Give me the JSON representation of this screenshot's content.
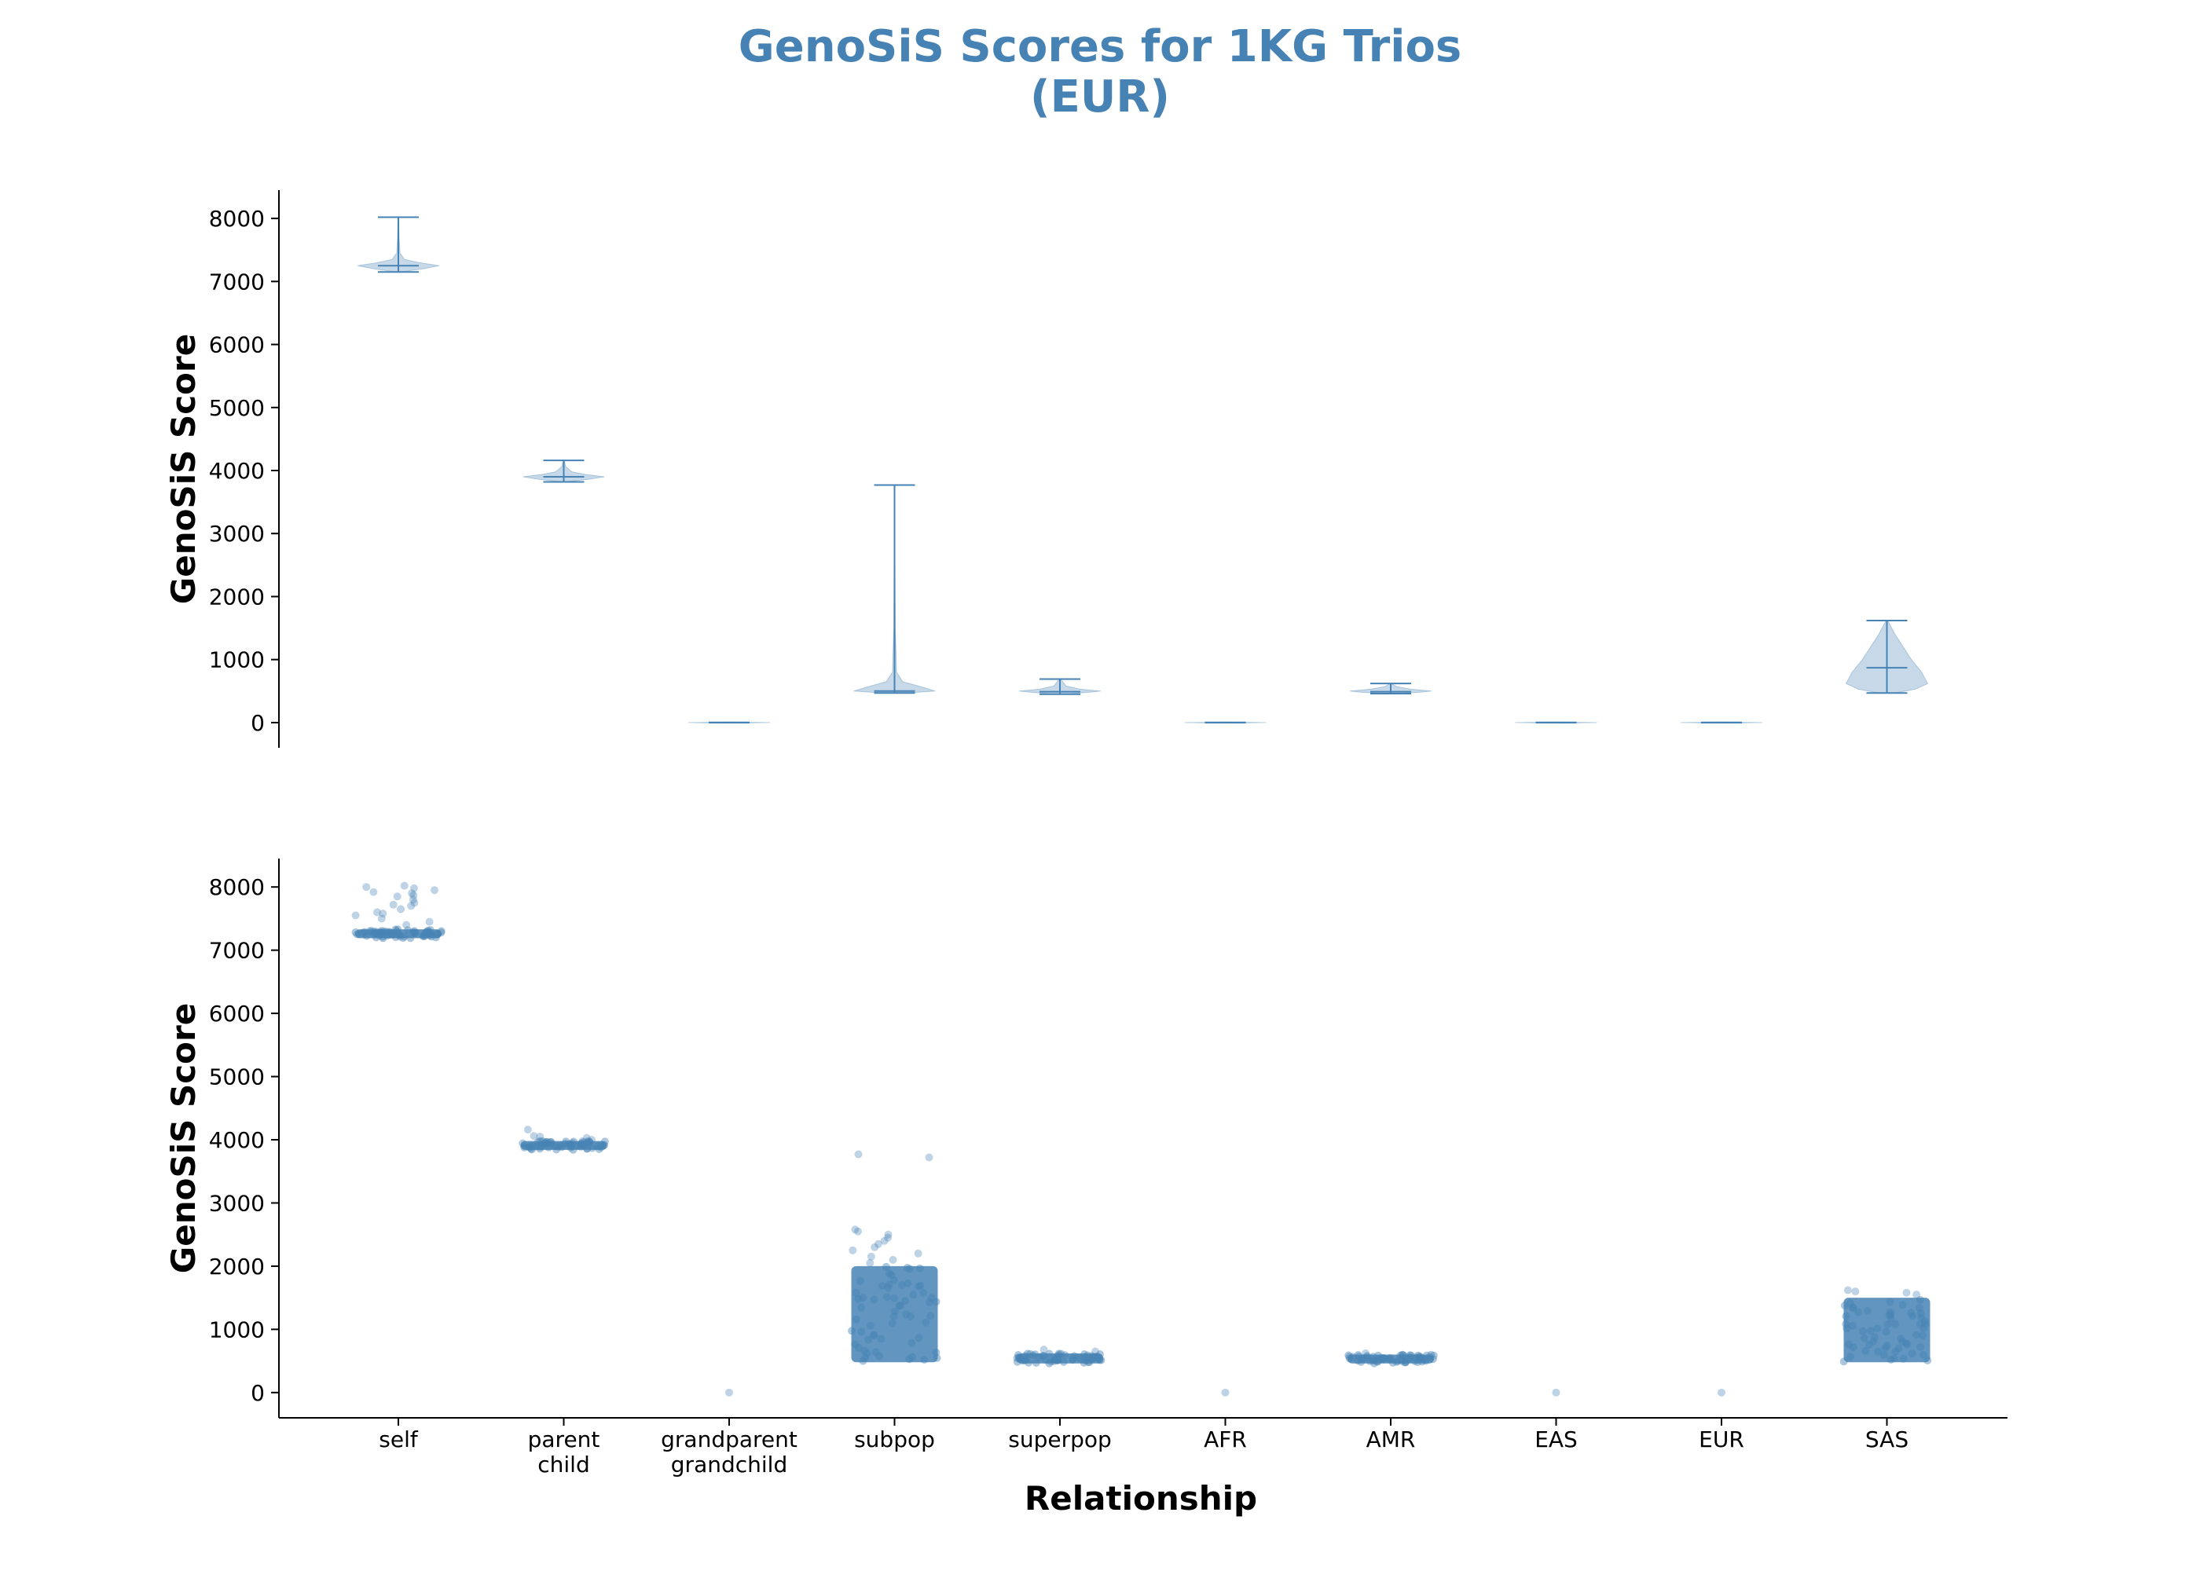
{
  "chart_data": {
    "title_line1": "GenoSiS Scores for 1KG Trios",
    "title_line2": "(EUR)",
    "title_color": "#4682b4",
    "series_color": "#4682b4",
    "xlabel": "Relationship",
    "categories": [
      [
        "self"
      ],
      [
        "parent",
        "child"
      ],
      [
        "grandparent",
        "grandchild"
      ],
      [
        "subpop"
      ],
      [
        "superpop"
      ],
      [
        "AFR"
      ],
      [
        "AMR"
      ],
      [
        "EAS"
      ],
      [
        "EUR"
      ],
      [
        "SAS"
      ]
    ],
    "panels": [
      {
        "type": "violin",
        "ylabel": "GenoSiS Score",
        "yticks": [
          0,
          1000,
          2000,
          3000,
          4000,
          5000,
          6000,
          7000,
          8000
        ],
        "ylim": [
          -400,
          8450
        ],
        "violins": [
          {
            "min": 7150,
            "max": 8020,
            "median": 7250,
            "profile": [
              [
                7150,
                0.05
              ],
              [
                7200,
                0.6
              ],
              [
                7250,
                1.0
              ],
              [
                7300,
                0.5
              ],
              [
                7350,
                0.15
              ],
              [
                7450,
                0.04
              ],
              [
                7700,
                0.02
              ],
              [
                8020,
                0.01
              ]
            ]
          },
          {
            "min": 3820,
            "max": 4160,
            "median": 3900,
            "profile": [
              [
                3820,
                0.05
              ],
              [
                3860,
                0.6
              ],
              [
                3900,
                1.0
              ],
              [
                3940,
                0.5
              ],
              [
                3980,
                0.2
              ],
              [
                4060,
                0.05
              ],
              [
                4160,
                0.01
              ]
            ]
          },
          {
            "min": 0,
            "max": 0,
            "median": 0,
            "profile": [
              [
                -8,
                0.0
              ],
              [
                0,
                1.0
              ],
              [
                8,
                0.0
              ]
            ]
          },
          {
            "min": 470,
            "max": 3770,
            "median": 500,
            "profile": [
              [
                470,
                0.3
              ],
              [
                500,
                1.0
              ],
              [
                560,
                0.7
              ],
              [
                650,
                0.2
              ],
              [
                800,
                0.05
              ],
              [
                1500,
                0.02
              ],
              [
                2500,
                0.01
              ],
              [
                3770,
                0.0
              ]
            ]
          },
          {
            "min": 450,
            "max": 690,
            "median": 490,
            "profile": [
              [
                450,
                0.1
              ],
              [
                480,
                0.7
              ],
              [
                500,
                1.0
              ],
              [
                530,
                0.5
              ],
              [
                580,
                0.15
              ],
              [
                690,
                0.02
              ]
            ]
          },
          {
            "min": 0,
            "max": 0,
            "median": 0,
            "profile": [
              [
                -8,
                0.0
              ],
              [
                0,
                1.0
              ],
              [
                8,
                0.0
              ]
            ]
          },
          {
            "min": 460,
            "max": 620,
            "median": 490,
            "profile": [
              [
                460,
                0.1
              ],
              [
                480,
                0.7
              ],
              [
                500,
                1.0
              ],
              [
                530,
                0.5
              ],
              [
                570,
                0.15
              ],
              [
                620,
                0.02
              ]
            ]
          },
          {
            "min": 0,
            "max": 0,
            "median": 0,
            "profile": [
              [
                -8,
                0.0
              ],
              [
                0,
                1.0
              ],
              [
                8,
                0.0
              ]
            ]
          },
          {
            "min": 0,
            "max": 0,
            "median": 0,
            "profile": [
              [
                -8,
                0.0
              ],
              [
                0,
                1.0
              ],
              [
                8,
                0.0
              ]
            ]
          },
          {
            "min": 470,
            "max": 1620,
            "median": 870,
            "profile": [
              [
                470,
                0.2
              ],
              [
                530,
                0.7
              ],
              [
                620,
                1.0
              ],
              [
                800,
                0.85
              ],
              [
                1000,
                0.6
              ],
              [
                1200,
                0.4
              ],
              [
                1400,
                0.2
              ],
              [
                1620,
                0.02
              ]
            ]
          }
        ]
      },
      {
        "type": "strip",
        "ylabel": "GenoSiS Score",
        "yticks": [
          0,
          1000,
          2000,
          3000,
          4000,
          5000,
          6000,
          7000,
          8000
        ],
        "ylim": [
          -400,
          8450
        ],
        "strips": [
          {
            "core_min": 7190,
            "core_max": 7330,
            "outliers": [
              7400,
              7450,
              7500,
              7550,
              7600,
              7650,
              7700,
              7750,
              7800,
              7850,
              7900,
              7950,
              7980,
              8000,
              8020,
              7920,
              7870,
              7720,
              7580
            ]
          },
          {
            "core_min": 3840,
            "core_max": 3980,
            "outliers": [
              4000,
              4030,
              4050,
              4060,
              4160
            ]
          },
          {
            "core_min": 0,
            "core_max": 0,
            "outliers": []
          },
          {
            "core_min": 480,
            "core_max": 2000,
            "outliers": [
              2050,
              2100,
              2150,
              2200,
              2250,
              2300,
              2350,
              2400,
              2450,
              2500,
              2550,
              2580,
              3720,
              3770
            ]
          },
          {
            "core_min": 460,
            "core_max": 620,
            "outliers": [
              650,
              680
            ]
          },
          {
            "core_min": 0,
            "core_max": 0,
            "outliers": []
          },
          {
            "core_min": 460,
            "core_max": 600,
            "outliers": [
              620
            ]
          },
          {
            "core_min": 0,
            "core_max": 0,
            "outliers": []
          },
          {
            "core_min": 0,
            "core_max": 0,
            "outliers": []
          },
          {
            "core_min": 480,
            "core_max": 1500,
            "outliers": [
              1550,
              1580,
              1600,
              1620
            ]
          }
        ]
      }
    ]
  }
}
